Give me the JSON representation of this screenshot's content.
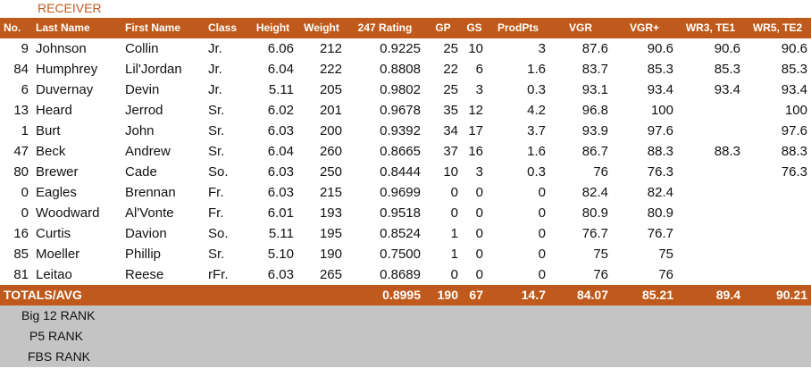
{
  "section_title": "RECEIVER",
  "headers": [
    "No.",
    "Last Name",
    "First Name",
    "Class",
    "Height",
    "Weight",
    "247 Rating",
    "GP",
    "GS",
    "ProdPts",
    "VGR",
    "VGR+",
    "WR3, TE1",
    "WR5, TE2"
  ],
  "rows": [
    [
      "9",
      "Johnson",
      "Collin",
      "Jr.",
      "6.06",
      "212",
      "0.9225",
      "25",
      "10",
      "3",
      "87.6",
      "90.6",
      "90.6",
      "90.6"
    ],
    [
      "84",
      "Humphrey",
      "Lil'Jordan",
      "Jr.",
      "6.04",
      "222",
      "0.8808",
      "22",
      "6",
      "1.6",
      "83.7",
      "85.3",
      "85.3",
      "85.3"
    ],
    [
      "6",
      "Duvernay",
      "Devin",
      "Jr.",
      "5.11",
      "205",
      "0.9802",
      "25",
      "3",
      "0.3",
      "93.1",
      "93.4",
      "93.4",
      "93.4"
    ],
    [
      "13",
      "Heard",
      "Jerrod",
      "Sr.",
      "6.02",
      "201",
      "0.9678",
      "35",
      "12",
      "4.2",
      "96.8",
      "100",
      "",
      "100"
    ],
    [
      "1",
      "Burt",
      "John",
      "Sr.",
      "6.03",
      "200",
      "0.9392",
      "34",
      "17",
      "3.7",
      "93.9",
      "97.6",
      "",
      "97.6"
    ],
    [
      "47",
      "Beck",
      "Andrew",
      "Sr.",
      "6.04",
      "260",
      "0.8665",
      "37",
      "16",
      "1.6",
      "86.7",
      "88.3",
      "88.3",
      "88.3"
    ],
    [
      "80",
      "Brewer",
      "Cade",
      "So.",
      "6.03",
      "250",
      "0.8444",
      "10",
      "3",
      "0.3",
      "76",
      "76.3",
      "",
      "76.3"
    ],
    [
      "0",
      "Eagles",
      "Brennan",
      "Fr.",
      "6.03",
      "215",
      "0.9699",
      "0",
      "0",
      "0",
      "82.4",
      "82.4",
      "",
      ""
    ],
    [
      "0",
      "Woodward",
      "Al'Vonte",
      "Fr.",
      "6.01",
      "193",
      "0.9518",
      "0",
      "0",
      "0",
      "80.9",
      "80.9",
      "",
      ""
    ],
    [
      "16",
      "Curtis",
      "Davion",
      "So.",
      "5.11",
      "195",
      "0.8524",
      "1",
      "0",
      "0",
      "76.7",
      "76.7",
      "",
      ""
    ],
    [
      "85",
      "Moeller",
      "Phillip",
      "Sr.",
      "5.10",
      "190",
      "0.7500",
      "1",
      "0",
      "0",
      "75",
      "75",
      "",
      ""
    ],
    [
      "81",
      "Leitao",
      "Reese",
      "rFr.",
      "6.03",
      "265",
      "0.8689",
      "0",
      "0",
      "0",
      "76",
      "76",
      "",
      ""
    ]
  ],
  "totals": {
    "label": "TOTALS/AVG",
    "values": [
      "",
      "",
      "",
      "",
      "",
      "0.8995",
      "190",
      "67",
      "14.7",
      "84.07",
      "85.21",
      "89.4",
      "90.21"
    ]
  },
  "ranks": [
    "Big 12 RANK",
    "P5 RANK",
    "FBS RANK"
  ],
  "colors": {
    "accent": "#bf5a1c",
    "rank_bg": "#c4c4c4"
  }
}
